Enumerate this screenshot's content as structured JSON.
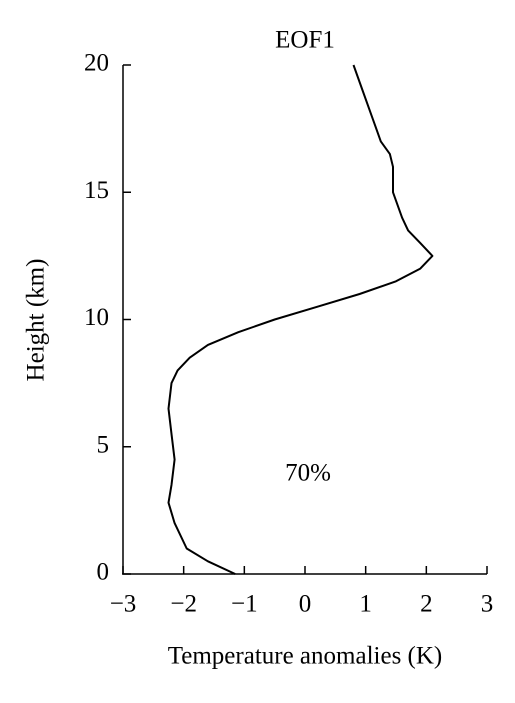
{
  "chart_data": {
    "type": "line",
    "title": "EOF1",
    "xlabel": "Temperature anomalies (K)",
    "ylabel": "Height (km)",
    "annotation": "70%",
    "x": [
      -1.15,
      -1.6,
      -1.95,
      -2.15,
      -2.25,
      -2.2,
      -2.15,
      -2.2,
      -2.25,
      -2.2,
      -2.1,
      -1.9,
      -1.6,
      -1.1,
      -0.5,
      0.2,
      0.9,
      1.5,
      1.9,
      2.1,
      1.9,
      1.7,
      1.6,
      1.45,
      1.45,
      1.4,
      1.25,
      1.1,
      0.95,
      0.8
    ],
    "y": [
      0,
      0.5,
      1,
      2,
      2.8,
      3.5,
      4.5,
      5.5,
      6.5,
      7.5,
      8,
      8.5,
      9,
      9.5,
      10,
      10.5,
      11,
      11.5,
      12,
      12.5,
      13,
      13.5,
      14,
      15,
      16,
      16.5,
      17,
      18,
      19,
      20
    ],
    "color": "#000000",
    "xlim": [
      -3,
      3
    ],
    "xticks": [
      {
        "value": -3,
        "label": "−3"
      },
      {
        "value": -2,
        "label": "−2"
      },
      {
        "value": -1,
        "label": "−1"
      },
      0,
      1,
      2,
      3
    ],
    "ylim": [
      0,
      20
    ],
    "yticks": [
      0,
      5,
      10,
      15,
      20
    ]
  }
}
